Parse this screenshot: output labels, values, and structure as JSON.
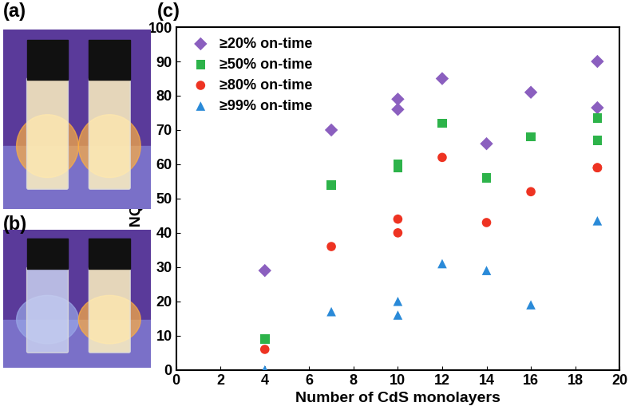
{
  "chart_data": {
    "type": "scatter",
    "title": "(c)",
    "annotations": [
      "(a)",
      "(b)"
    ],
    "x_label": "Number of CdS monolayers",
    "y_label": "Percent NQD population",
    "xlim": [
      0,
      20
    ],
    "xticks": [
      0,
      2,
      4,
      6,
      8,
      10,
      12,
      14,
      16,
      18,
      20
    ],
    "ylim": [
      0,
      100
    ],
    "yticks": [
      0,
      10,
      20,
      30,
      40,
      50,
      60,
      70,
      80,
      90,
      100
    ],
    "grid": false,
    "legend": "upper left",
    "series": [
      {
        "name": "≥20% on-time",
        "color": "#8b5fbf",
        "marker": "diamond",
        "x": [
          4,
          7,
          10,
          10,
          12,
          14,
          16,
          19,
          19
        ],
        "values": [
          29,
          70,
          79,
          76,
          85,
          66,
          81,
          90,
          76.5
        ]
      },
      {
        "name": "≥50% on-time",
        "color": "#2db34a",
        "marker": "square",
        "x": [
          4,
          7,
          10,
          10,
          12,
          14,
          16,
          19,
          19
        ],
        "values": [
          9,
          54,
          60,
          59,
          72,
          56,
          68,
          73.5,
          67
        ]
      },
      {
        "name": "≥80% on-time",
        "color": "#ee3322",
        "marker": "circle",
        "x": [
          4,
          7,
          10,
          10,
          12,
          14,
          16,
          19,
          19
        ],
        "values": [
          6,
          36,
          44,
          40,
          62,
          43,
          52,
          59,
          59
        ]
      },
      {
        "name": "≥99% on-time",
        "color": "#2a8ad8",
        "marker": "triangle",
        "x": [
          4,
          7,
          10,
          10,
          12,
          14,
          16,
          19
        ],
        "values": [
          0,
          17,
          20,
          16,
          31,
          29,
          19,
          43.5
        ]
      }
    ]
  }
}
